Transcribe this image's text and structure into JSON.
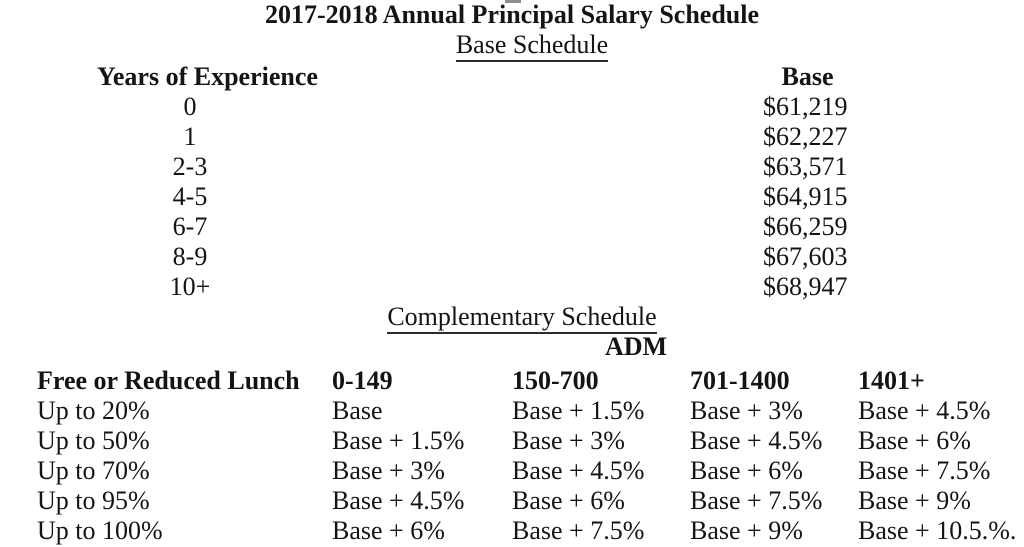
{
  "document": {
    "title": "2017-2018 Annual Principal Salary Schedule"
  },
  "base_schedule": {
    "heading": "Base Schedule",
    "columns": {
      "years": "Years of Experience",
      "base": "Base"
    },
    "rows": [
      {
        "years": "0",
        "base": "$61,219"
      },
      {
        "years": "1",
        "base": "$62,227"
      },
      {
        "years": "2-3",
        "base": "$63,571"
      },
      {
        "years": "4-5",
        "base": "$64,915"
      },
      {
        "years": "6-7",
        "base": "$66,259"
      },
      {
        "years": "8-9",
        "base": "$67,603"
      },
      {
        "years": "10+",
        "base": "$68,947"
      }
    ]
  },
  "complementary_schedule": {
    "heading": "Complementary Schedule",
    "adm_label": "ADM",
    "columns": [
      "Free or Reduced Lunch",
      "0-149",
      "150-700",
      "701-1400",
      "1401+"
    ],
    "rows": [
      {
        "lunch": "Up to 20%",
        "c1": "Base",
        "c2": "Base + 1.5%",
        "c3": "Base + 3%",
        "c4": "Base + 4.5%"
      },
      {
        "lunch": "Up to 50%",
        "c1": "Base + 1.5%",
        "c2": "Base + 3%",
        "c3": "Base + 4.5%",
        "c4": "Base + 6%"
      },
      {
        "lunch": "Up to 70%",
        "c1": "Base + 3%",
        "c2": "Base + 4.5%",
        "c3": "Base + 6%",
        "c4": "Base + 7.5%"
      },
      {
        "lunch": "Up to 95%",
        "c1": "Base + 4.5%",
        "c2": "Base + 6%",
        "c3": "Base + 7.5%",
        "c4": "Base + 9%"
      },
      {
        "lunch": "Up to 100%",
        "c1": "Base + 6%",
        "c2": "Base + 7.5%",
        "c3": "Base + 9%",
        "c4": "Base + 10.5.%."
      }
    ]
  }
}
